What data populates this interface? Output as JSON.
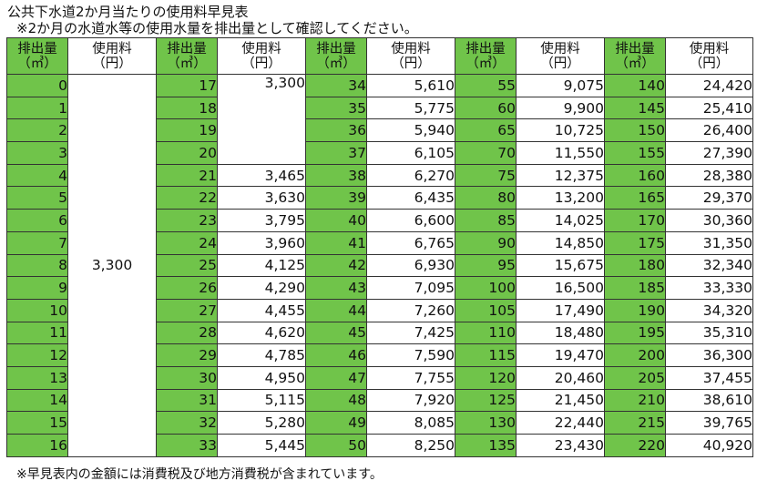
{
  "title": "公共下水道2か月当たりの使用料早見表",
  "subtitle": "※2か月の水道水等の使用水量を排出量として確認してください。",
  "footnote": "※早見表内の金額には消費税及び地方消費税が含まれています。",
  "header": {
    "volume_line1": "排出量",
    "volume_line2": "（㎥）",
    "fee_line1": "使用料",
    "fee_line2": "（円）"
  },
  "colors": {
    "volume_cell": "#70c44a",
    "fee_cell": "#ffffff",
    "border": "#333333"
  },
  "columns": [
    {
      "volumes": [
        "0",
        "1",
        "2",
        "3",
        "4",
        "5",
        "6",
        "7",
        "8",
        "9",
        "10",
        "11",
        "12",
        "13",
        "14",
        "15",
        "16"
      ],
      "merged_fee": "3,300",
      "fees": []
    },
    {
      "volumes": [
        "17",
        "18",
        "19",
        "20",
        "21",
        "22",
        "23",
        "24",
        "25",
        "26",
        "27",
        "28",
        "29",
        "30",
        "31",
        "32",
        "33"
      ],
      "merged_fee": "3,300",
      "fees": [
        "3,465",
        "3,630",
        "3,795",
        "3,960",
        "4,125",
        "4,290",
        "4,455",
        "4,620",
        "4,785",
        "4,950",
        "5,115",
        "5,280",
        "5,445"
      ]
    },
    {
      "volumes": [
        "34",
        "35",
        "36",
        "37",
        "38",
        "39",
        "40",
        "41",
        "42",
        "43",
        "44",
        "45",
        "46",
        "47",
        "48",
        "49",
        "50"
      ],
      "fees": [
        "5,610",
        "5,775",
        "5,940",
        "6,105",
        "6,270",
        "6,435",
        "6,600",
        "6,765",
        "6,930",
        "7,095",
        "7,260",
        "7,425",
        "7,590",
        "7,755",
        "7,920",
        "8,085",
        "8,250"
      ]
    },
    {
      "volumes": [
        "55",
        "60",
        "65",
        "70",
        "75",
        "80",
        "85",
        "90",
        "95",
        "100",
        "105",
        "110",
        "115",
        "120",
        "125",
        "130",
        "135"
      ],
      "fees": [
        "9,075",
        "9,900",
        "10,725",
        "11,550",
        "12,375",
        "13,200",
        "14,025",
        "14,850",
        "15,675",
        "16,500",
        "17,490",
        "18,480",
        "19,470",
        "20,460",
        "21,450",
        "22,440",
        "23,430"
      ]
    },
    {
      "volumes": [
        "140",
        "145",
        "150",
        "155",
        "160",
        "165",
        "170",
        "175",
        "180",
        "185",
        "190",
        "195",
        "200",
        "205",
        "210",
        "215",
        "220"
      ],
      "fees": [
        "24,420",
        "25,410",
        "26,400",
        "27,390",
        "28,380",
        "29,370",
        "30,360",
        "31,350",
        "32,340",
        "33,330",
        "34,320",
        "35,310",
        "36,300",
        "37,455",
        "38,610",
        "39,765",
        "40,920"
      ]
    }
  ]
}
